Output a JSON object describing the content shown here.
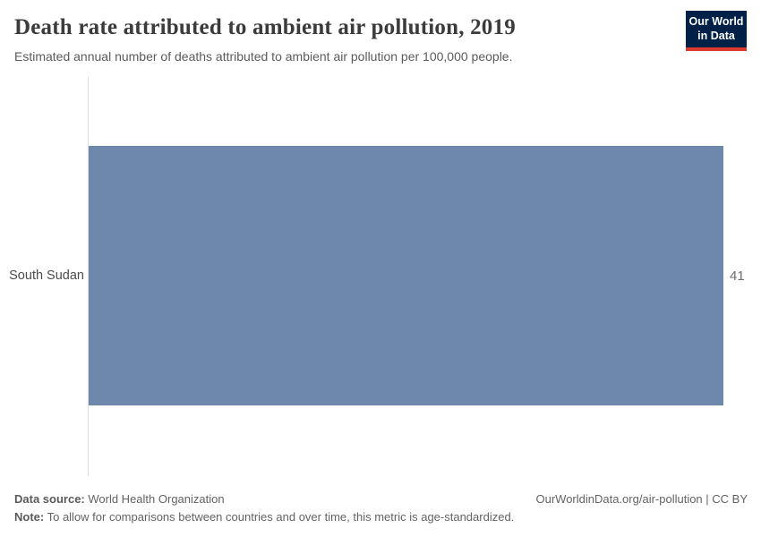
{
  "header": {
    "title": "Death rate attributed to ambient air pollution, 2019",
    "subtitle": "Estimated annual number of deaths attributed to ambient air pollution per 100,000 people.",
    "logo_line1": "Our World",
    "logo_line2": "in Data"
  },
  "chart_data": {
    "type": "bar",
    "orientation": "horizontal",
    "title": "Death rate attributed to ambient air pollution, 2019",
    "subtitle": "Estimated annual number of deaths attributed to ambient air pollution per 100,000 people.",
    "categories": [
      "South Sudan"
    ],
    "values": [
      41
    ],
    "value_labels": [
      "41"
    ],
    "xlabel": "",
    "ylabel": "",
    "xlim": [
      0,
      41
    ],
    "grid": false,
    "legend": "none",
    "bar_color": "#6e87ad"
  },
  "footer": {
    "data_source_label": "Data source:",
    "data_source_value": " World Health Organization",
    "note_label": "Note:",
    "note_value": " To allow for comparisons between countries and over time, this metric is age-standardized.",
    "link_text": "OurWorldinData.org/air-pollution | CC BY"
  },
  "colors": {
    "bar": "#6e87ad",
    "logo_bg": "#002147",
    "logo_accent": "#d93a2b",
    "axis_line": "#dedede",
    "title_text": "#3b3b3b",
    "subtitle_text": "#5b5b5b",
    "footer_text": "#636363"
  }
}
